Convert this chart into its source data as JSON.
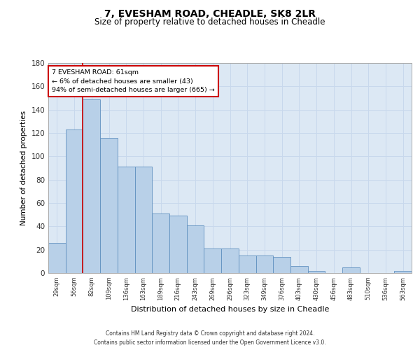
{
  "title1": "7, EVESHAM ROAD, CHEADLE, SK8 2LR",
  "title2": "Size of property relative to detached houses in Cheadle",
  "xlabel": "Distribution of detached houses by size in Cheadle",
  "ylabel": "Number of detached properties",
  "categories": [
    "29sqm",
    "56sqm",
    "82sqm",
    "109sqm",
    "136sqm",
    "163sqm",
    "189sqm",
    "216sqm",
    "243sqm",
    "269sqm",
    "296sqm",
    "323sqm",
    "349sqm",
    "376sqm",
    "403sqm",
    "430sqm",
    "456sqm",
    "483sqm",
    "510sqm",
    "536sqm",
    "563sqm"
  ],
  "values": [
    26,
    123,
    149,
    116,
    91,
    91,
    51,
    49,
    41,
    21,
    21,
    15,
    15,
    14,
    6,
    2,
    0,
    5,
    0,
    0,
    2
  ],
  "bar_color": "#b8d0e8",
  "bar_edge_color": "#6090c0",
  "highlight_bar_index": 1,
  "highlight_line_color": "#cc0000",
  "annotation_text": "7 EVESHAM ROAD: 61sqm\n← 6% of detached houses are smaller (43)\n94% of semi-detached houses are larger (665) →",
  "annotation_box_edge_color": "#cc0000",
  "ylim": [
    0,
    180
  ],
  "yticks": [
    0,
    20,
    40,
    60,
    80,
    100,
    120,
    140,
    160,
    180
  ],
  "grid_color": "#c8d8ec",
  "bg_color": "#dce8f4",
  "footer1": "Contains HM Land Registry data © Crown copyright and database right 2024.",
  "footer2": "Contains public sector information licensed under the Open Government Licence v3.0."
}
